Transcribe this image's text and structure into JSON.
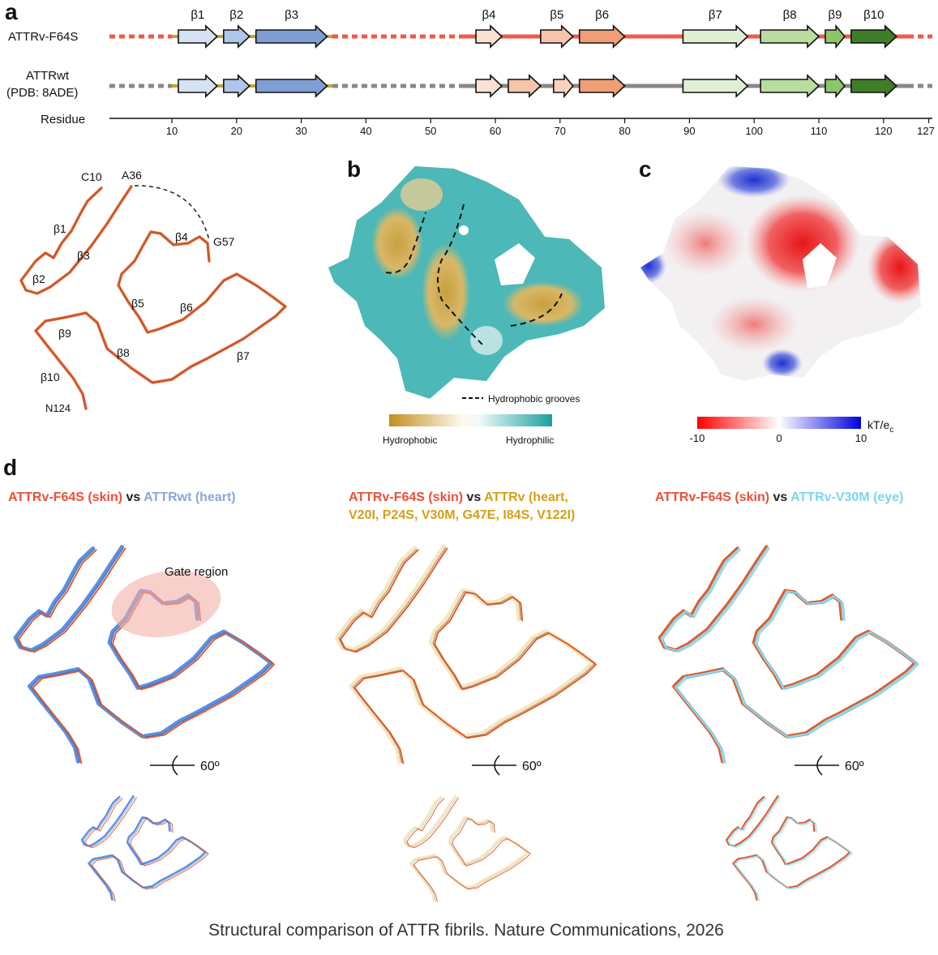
{
  "panel_a": {
    "label": "a",
    "rows": [
      {
        "name": [
          "ATTRv-F64S"
        ],
        "line_color": "#f05a4a",
        "strands": [
          {
            "label": "β1",
            "start": 11,
            "end": 17,
            "color": "#d6e2f3"
          },
          {
            "label": "β2",
            "start": 18,
            "end": 22,
            "color": "#aec6e8"
          },
          {
            "label": "β3",
            "start": 23,
            "end": 34,
            "color": "#7f9fd4"
          },
          {
            "label": "β4",
            "start": 57,
            "end": 61,
            "color": "#fbe1d3"
          },
          {
            "label": "β5",
            "start": 67,
            "end": 72,
            "color": "#f6c4a8"
          },
          {
            "label": "β6",
            "start": 73,
            "end": 80,
            "color": "#ef9f73"
          },
          {
            "label": "β7",
            "start": 89,
            "end": 99,
            "color": "#e0efd4"
          },
          {
            "label": "β8",
            "start": 101,
            "end": 110,
            "color": "#b9dca0"
          },
          {
            "label": "β9",
            "start": 111,
            "end": 114,
            "color": "#8cc56a"
          },
          {
            "label": "β10",
            "start": 115,
            "end": 122,
            "color": "#3f7d2a"
          }
        ]
      },
      {
        "name": [
          "ATTRwt",
          "(PDB: 8ADE)"
        ],
        "line_color": "#888888",
        "strands": [
          {
            "start": 11,
            "end": 17,
            "color": "#d6e2f3"
          },
          {
            "start": 18,
            "end": 22,
            "color": "#aec6e8"
          },
          {
            "start": 23,
            "end": 34,
            "color": "#7f9fd4"
          },
          {
            "start": 57,
            "end": 61,
            "color": "#fbe1d3"
          },
          {
            "start": 62,
            "end": 67,
            "color": "#f6c4a8"
          },
          {
            "start": 69,
            "end": 72,
            "color": "#f9d2bc"
          },
          {
            "start": 73,
            "end": 80,
            "color": "#ef9f73"
          },
          {
            "start": 89,
            "end": 99,
            "color": "#e0efd4"
          },
          {
            "start": 101,
            "end": 110,
            "color": "#b9dca0"
          },
          {
            "start": 111,
            "end": 114,
            "color": "#8cc56a"
          },
          {
            "start": 115,
            "end": 122,
            "color": "#3f7d2a"
          }
        ]
      }
    ],
    "axis": {
      "title": "Residue",
      "ticks": [
        10,
        20,
        30,
        40,
        50,
        60,
        70,
        80,
        90,
        100,
        110,
        120,
        127
      ]
    },
    "structure_labels": [
      "C10",
      "A36",
      "G57",
      "β1",
      "β2",
      "β3",
      "β4",
      "β5",
      "β6",
      "β7",
      "β8",
      "β9",
      "β10",
      "N124"
    ]
  },
  "panel_b": {
    "label": "b",
    "legend": "Hydrophobic grooves",
    "colorbar": [
      "Hydrophobic",
      "Hydrophilic"
    ]
  },
  "panel_c": {
    "label": "c",
    "colorbar_ticks": [
      -10,
      0,
      10
    ],
    "unit": {
      "main": "kT/e",
      "sub": "c"
    }
  },
  "panel_d": {
    "label": "d",
    "columns": [
      {
        "title": [
          [
            "ATTRv-F64S (skin)",
            " vs ",
            "ATTRwt (heart)"
          ]
        ],
        "colors": [
          "#e8503a",
          "#222222",
          "#8aa6dc"
        ]
      },
      {
        "title": [
          [
            "ATTRv-F64S (skin)",
            " vs ",
            "ATTRv (heart,"
          ],
          [
            "V20I, P24S, V30M, G47E, I84S, V122I)"
          ]
        ],
        "colors": [
          "#e8503a",
          "#222222",
          "#d4a017"
        ]
      },
      {
        "title": [
          [
            "ATTRv-F64S (skin)",
            " vs ",
            "ATTRv-V30M (eye)"
          ]
        ],
        "colors": [
          "#e8503a",
          "#222222",
          "#7fd4ec"
        ]
      }
    ],
    "gate_label": "Gate region",
    "rotation": "60º"
  },
  "caption": "Structural comparison of ATTR fibrils. Nature Communications, 2026"
}
